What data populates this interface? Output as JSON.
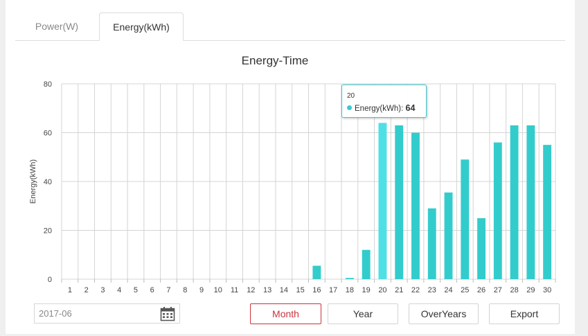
{
  "tabs": [
    {
      "label": "Power(W)"
    },
    {
      "label": "Energy(kWh)"
    }
  ],
  "date_field": {
    "value": "2017-06"
  },
  "buttons": {
    "month": "Month",
    "year": "Year",
    "overyears": "OverYears",
    "export": "Export"
  },
  "tooltip": {
    "x": "20",
    "series": "Energy(kWh)",
    "separator": ": ",
    "value": "64"
  },
  "colors": {
    "bar": "#33cccc",
    "bar_hover": "#4fe0e6",
    "active_button": "#c9333a",
    "grid": "#d4d4d4"
  },
  "chart_data": {
    "type": "bar",
    "title": "Energy-Time",
    "xlabel": "",
    "ylabel": "Energy(kWh)",
    "ylim": [
      0,
      80
    ],
    "yticks": [
      0,
      20,
      40,
      60,
      80
    ],
    "grid": true,
    "legend": "none",
    "categories": [
      "1",
      "2",
      "3",
      "4",
      "5",
      "6",
      "7",
      "8",
      "9",
      "10",
      "11",
      "12",
      "13",
      "14",
      "15",
      "16",
      "17",
      "18",
      "19",
      "20",
      "21",
      "22",
      "23",
      "24",
      "25",
      "26",
      "27",
      "28",
      "29",
      "30"
    ],
    "series": [
      {
        "values": [
          0,
          0,
          0,
          0,
          0,
          0,
          0,
          0,
          0,
          0,
          0,
          0,
          0,
          0,
          0,
          5.5,
          0,
          0.5,
          12,
          64,
          63,
          60,
          29,
          35.5,
          49,
          25,
          56,
          63,
          63,
          55
        ]
      }
    ],
    "highlighted_index": 19
  }
}
